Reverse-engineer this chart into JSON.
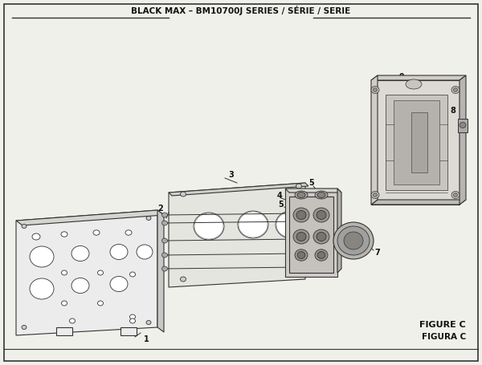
{
  "title": "BLACK MAX – BM10700J SERIES / SÉRIE / SERIE",
  "figure_label": "FIGURE C",
  "figure_label2": "FIGURA C",
  "bg_color": "#f0f0eb",
  "border_color": "#222222",
  "line_color": "#333333"
}
